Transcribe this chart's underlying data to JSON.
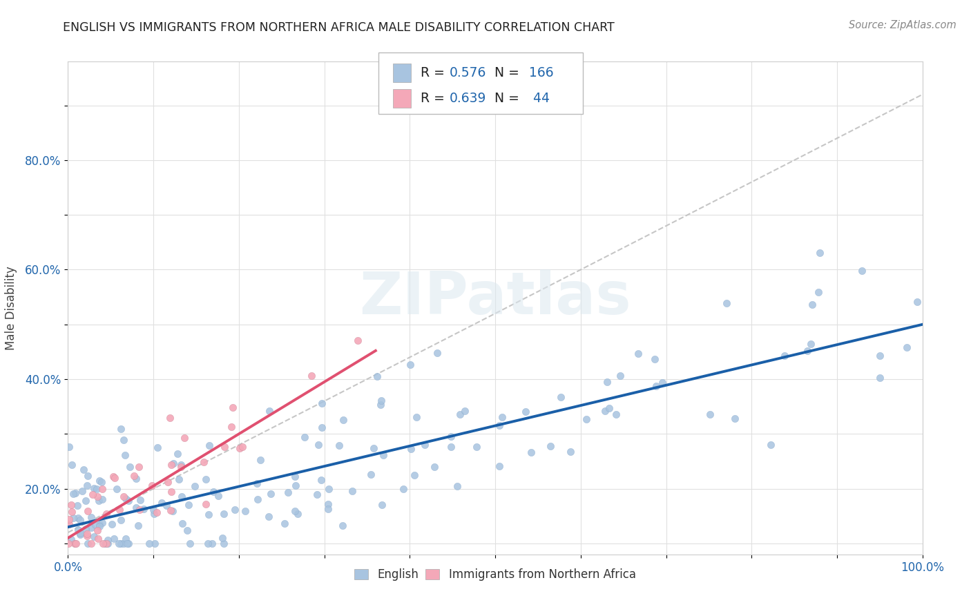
{
  "title": "ENGLISH VS IMMIGRANTS FROM NORTHERN AFRICA MALE DISABILITY CORRELATION CHART",
  "source": "Source: ZipAtlas.com",
  "ylabel": "Male Disability",
  "xlim": [
    0.0,
    1.0
  ],
  "ylim": [
    -0.02,
    0.88
  ],
  "english_color": "#a8c4e0",
  "immigrant_color": "#f4a8b8",
  "english_line_color": "#1a5fa8",
  "immigrant_line_color": "#e05070",
  "trendline_color": "#c0c0c0",
  "R_english": 0.576,
  "N_english": 166,
  "R_immigrant": 0.639,
  "N_immigrant": 44,
  "watermark_text": "ZIPatlas",
  "background_color": "#ffffff",
  "grid_color": "#e0e0e0"
}
